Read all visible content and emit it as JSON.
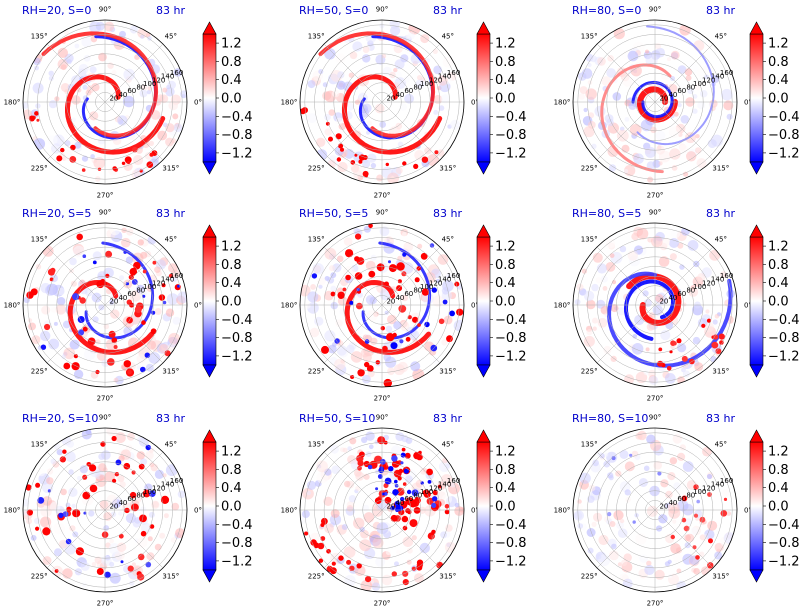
{
  "figure": {
    "colormap": {
      "name": "bwr",
      "low": "#0000ff",
      "mid": "#ffffff",
      "high": "#ff0000"
    },
    "colorbar": {
      "ticks": [
        "1.2",
        "0.8",
        "0.4",
        "0.0",
        "−0.4",
        "−0.8",
        "−1.2"
      ],
      "extend": "both"
    },
    "angle_labels": [
      "90°",
      "45°",
      "0°",
      "315°",
      "270°",
      "225°",
      "180°",
      "135°"
    ],
    "radial_labels": [
      "20",
      "40",
      "60",
      "80",
      "100",
      "120",
      "140",
      "160"
    ]
  },
  "chart_data": [
    {
      "type": "heatmap",
      "projection": "polar",
      "title": "RH=20, S=0",
      "time": "83 hr",
      "clim": [
        -1.4,
        1.4
      ],
      "pattern": "spiral-strong"
    },
    {
      "type": "heatmap",
      "projection": "polar",
      "title": "RH=50, S=0",
      "time": "83 hr",
      "clim": [
        -1.4,
        1.4
      ],
      "pattern": "spiral-strong"
    },
    {
      "type": "heatmap",
      "projection": "polar",
      "title": "RH=80, S=0",
      "time": "83 hr",
      "clim": [
        -1.4,
        1.4
      ],
      "pattern": "eyewall-tight"
    },
    {
      "type": "heatmap",
      "projection": "polar",
      "title": "RH=20, S=5",
      "time": "83 hr",
      "clim": [
        -1.4,
        1.4
      ],
      "pattern": "spiral-cells"
    },
    {
      "type": "heatmap",
      "projection": "polar",
      "title": "RH=50, S=5",
      "time": "83 hr",
      "clim": [
        -1.4,
        1.4
      ],
      "pattern": "spiral-cells"
    },
    {
      "type": "heatmap",
      "projection": "polar",
      "title": "RH=80, S=5",
      "time": "83 hr",
      "clim": [
        -1.4,
        1.4
      ],
      "pattern": "eyewall-band"
    },
    {
      "type": "heatmap",
      "projection": "polar",
      "title": "RH=20, S=10",
      "time": "83 hr",
      "clim": [
        -1.4,
        1.4
      ],
      "pattern": "scattered"
    },
    {
      "type": "heatmap",
      "projection": "polar",
      "title": "RH=50, S=10",
      "time": "83 hr",
      "clim": [
        -1.4,
        1.4
      ],
      "pattern": "downshear-burst"
    },
    {
      "type": "heatmap",
      "projection": "polar",
      "title": "RH=80, S=10",
      "time": "83 hr",
      "clim": [
        -1.4,
        1.4
      ],
      "pattern": "weak"
    }
  ]
}
